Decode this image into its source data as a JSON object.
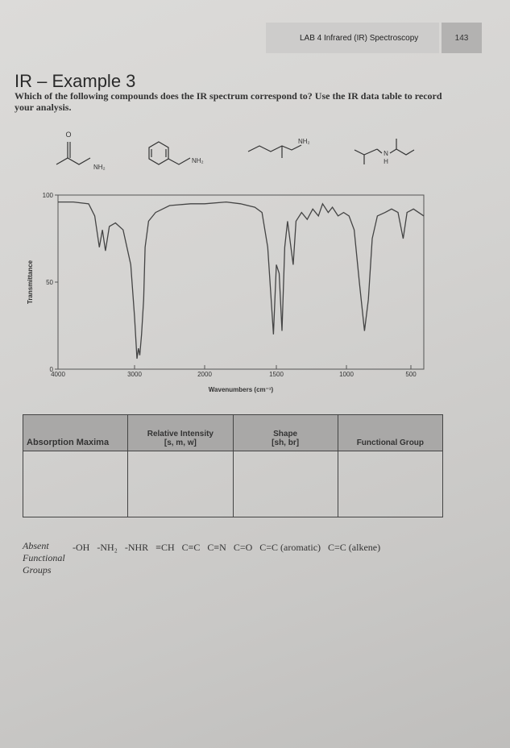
{
  "header": {
    "section": "LAB 4  Infrared (IR) Spectroscopy",
    "page": "143"
  },
  "title": "IR – Example 3",
  "question": "Which of the following compounds does the IR spectrum correspond to? Use the IR data table to record your analysis.",
  "compounds": [
    {
      "labels": [
        "O",
        "NH₂"
      ]
    },
    {
      "labels": [
        "NH₂"
      ]
    },
    {
      "labels": [
        "NH₂"
      ]
    },
    {
      "labels": [
        "N",
        "H"
      ]
    }
  ],
  "chart_data": {
    "type": "line",
    "x_label": "Wavenumbers (cm⁻¹)",
    "y_label": "Transmittance",
    "xlim": [
      4000,
      400
    ],
    "ylim": [
      0,
      100
    ],
    "xticks": [
      4000,
      3000,
      2000,
      1500,
      1000,
      500
    ],
    "yticks": [
      0,
      50,
      100
    ],
    "color": "#444444",
    "x": [
      4000,
      3800,
      3600,
      3520,
      3460,
      3420,
      3380,
      3330,
      3250,
      3150,
      3050,
      3000,
      2965,
      2945,
      2925,
      2900,
      2870,
      2850,
      2800,
      2700,
      2500,
      2200,
      2000,
      1850,
      1750,
      1650,
      1600,
      1560,
      1520,
      1500,
      1480,
      1460,
      1440,
      1420,
      1380,
      1360,
      1320,
      1280,
      1240,
      1200,
      1170,
      1130,
      1100,
      1060,
      1020,
      980,
      940,
      900,
      860,
      830,
      800,
      760,
      700,
      650,
      600,
      560,
      530,
      480,
      400
    ],
    "values": [
      96,
      96,
      95,
      88,
      70,
      80,
      68,
      82,
      84,
      80,
      60,
      30,
      6,
      12,
      8,
      20,
      40,
      70,
      85,
      90,
      94,
      95,
      95,
      96,
      95,
      93,
      90,
      70,
      20,
      60,
      55,
      22,
      70,
      85,
      60,
      85,
      90,
      86,
      92,
      88,
      95,
      90,
      93,
      88,
      90,
      88,
      80,
      50,
      22,
      40,
      75,
      88,
      90,
      92,
      90,
      75,
      90,
      92,
      88
    ]
  },
  "table": {
    "headers": [
      "Absorption Maxima",
      "Relative Intensity\n[s, m, w]",
      "Shape\n[sh, br]",
      "Functional Group"
    ]
  },
  "absent": {
    "label": "Absent Functional Groups",
    "groups": [
      "-OH",
      "-NH₂",
      "-NHR",
      "≡CH",
      "C≡C",
      "C≡N",
      "C=O",
      "C=C (aromatic)",
      "C=C (alkene)"
    ]
  }
}
